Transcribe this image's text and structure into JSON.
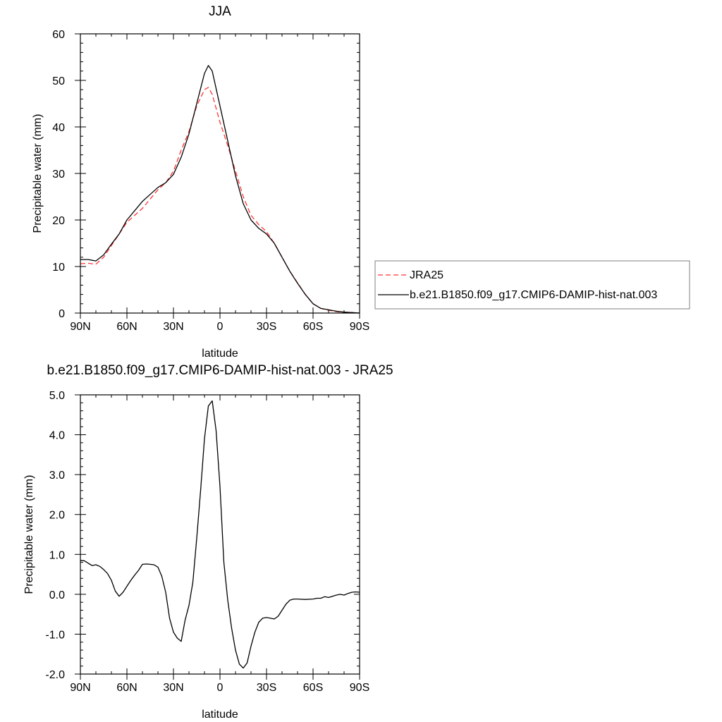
{
  "chart_data": [
    {
      "type": "line",
      "title": "JJA",
      "xlabel": "latitude",
      "ylabel": "Precipitable water (mm)",
      "xlim": [
        90,
        -90
      ],
      "ylim": [
        0,
        60
      ],
      "xticks": [
        90,
        60,
        30,
        0,
        -30,
        -60,
        -90
      ],
      "xtick_labels": [
        "90N",
        "60N",
        "30N",
        "0",
        "30S",
        "60S",
        "90S"
      ],
      "yticks": [
        0,
        10,
        20,
        30,
        40,
        50,
        60
      ],
      "ytick_labels": [
        "0",
        "10",
        "20",
        "30",
        "40",
        "50",
        "60"
      ],
      "legend": "right",
      "grid": false,
      "series": [
        {
          "name": "JRA25",
          "color": "#ff3333",
          "dash": "dashed",
          "x": [
            90,
            85,
            80,
            75,
            70,
            65,
            60,
            55,
            50,
            45,
            40,
            35,
            30,
            25,
            20,
            15,
            10,
            7.5,
            5,
            0,
            -5,
            -10,
            -15,
            -20,
            -25,
            -30,
            -35,
            -40,
            -45,
            -50,
            -55,
            -60,
            -65,
            -70,
            -75,
            -80,
            -85,
            -90
          ],
          "values": [
            10.6,
            10.7,
            10.5,
            12.0,
            14.5,
            17.0,
            19.5,
            21.0,
            22.5,
            24.5,
            26.5,
            28.0,
            30.5,
            35.0,
            39.0,
            44.5,
            48.0,
            48.5,
            47.0,
            41.0,
            36.0,
            30.5,
            25.0,
            21.0,
            19.0,
            17.5,
            15.0,
            12.0,
            9.0,
            6.5,
            4.0,
            2.0,
            1.0,
            0.6,
            0.3,
            0.2,
            0.1,
            0.0
          ]
        },
        {
          "name": "b.e21.B1850.f09_g17.CMIP6-DAMIP-hist-nat.003",
          "color": "#000000",
          "dash": "solid",
          "x": [
            90,
            85,
            80,
            75,
            70,
            65,
            60,
            55,
            50,
            45,
            40,
            35,
            30,
            25,
            20,
            15,
            10,
            7.5,
            5,
            0,
            -5,
            -10,
            -15,
            -20,
            -25,
            -30,
            -35,
            -40,
            -45,
            -50,
            -55,
            -60,
            -65,
            -70,
            -75,
            -80,
            -85,
            -90
          ],
          "values": [
            11.5,
            11.5,
            11.2,
            12.5,
            14.8,
            17.0,
            20.0,
            22.0,
            24.0,
            25.5,
            27.0,
            28.0,
            29.8,
            33.5,
            38.5,
            45.0,
            51.5,
            53.2,
            52.0,
            44.5,
            37.0,
            29.5,
            23.5,
            20.0,
            18.2,
            17.0,
            15.0,
            12.0,
            9.0,
            6.4,
            4.0,
            2.0,
            1.0,
            0.7,
            0.4,
            0.2,
            0.1,
            0.0
          ]
        }
      ]
    },
    {
      "type": "line",
      "title": "b.e21.B1850.f09_g17.CMIP6-DAMIP-hist-nat.003 - JRA25",
      "xlabel": "latitude",
      "ylabel": "Precipitable water (mm)",
      "xlim": [
        90,
        -90
      ],
      "ylim": [
        -2.0,
        5.0
      ],
      "xticks": [
        90,
        60,
        30,
        0,
        -30,
        -60,
        -90
      ],
      "xtick_labels": [
        "90N",
        "60N",
        "30N",
        "0",
        "30S",
        "60S",
        "90S"
      ],
      "yticks": [
        -2.0,
        -1.0,
        0.0,
        1.0,
        2.0,
        3.0,
        4.0,
        5.0
      ],
      "ytick_labels": [
        "-2.0",
        "-1.0",
        "0.0",
        "1.0",
        "2.0",
        "3.0",
        "4.0",
        "5.0"
      ],
      "grid": false,
      "series": [
        {
          "color": "#000000",
          "dash": "solid",
          "x": [
            90,
            87.5,
            85,
            82.5,
            80,
            77.5,
            75,
            72.5,
            70,
            67.5,
            65,
            62.5,
            60,
            57.5,
            55,
            52.5,
            50,
            47.5,
            45,
            42.5,
            40,
            37.5,
            35,
            32.5,
            30,
            27.5,
            25,
            22.5,
            20,
            17.5,
            15,
            12.5,
            10,
            7.5,
            5,
            2.5,
            0,
            -2.5,
            -5,
            -7.5,
            -10,
            -12.5,
            -15,
            -17.5,
            -20,
            -22.5,
            -25,
            -27.5,
            -30,
            -32.5,
            -35,
            -37.5,
            -40,
            -42.5,
            -45,
            -47.5,
            -50,
            -55,
            -60,
            -62.5,
            -65,
            -67.5,
            -70,
            -72.5,
            -75,
            -77.5,
            -80,
            -82.5,
            -85,
            -87.5,
            -90
          ],
          "values": [
            0.85,
            0.84,
            0.78,
            0.72,
            0.74,
            0.7,
            0.62,
            0.52,
            0.35,
            0.08,
            -0.05,
            0.05,
            0.2,
            0.35,
            0.48,
            0.6,
            0.75,
            0.76,
            0.75,
            0.74,
            0.68,
            0.45,
            0.05,
            -0.6,
            -0.95,
            -1.1,
            -1.18,
            -0.65,
            -0.28,
            0.3,
            1.4,
            2.6,
            3.9,
            4.72,
            4.85,
            4.1,
            2.7,
            0.8,
            -0.15,
            -0.85,
            -1.4,
            -1.75,
            -1.85,
            -1.72,
            -1.3,
            -0.95,
            -0.7,
            -0.6,
            -0.58,
            -0.6,
            -0.62,
            -0.55,
            -0.4,
            -0.25,
            -0.15,
            -0.12,
            -0.12,
            -0.13,
            -0.12,
            -0.1,
            -0.1,
            -0.06,
            -0.08,
            -0.05,
            -0.02,
            0.0,
            -0.02,
            0.02,
            0.05,
            0.06,
            0.05
          ]
        }
      ]
    }
  ]
}
